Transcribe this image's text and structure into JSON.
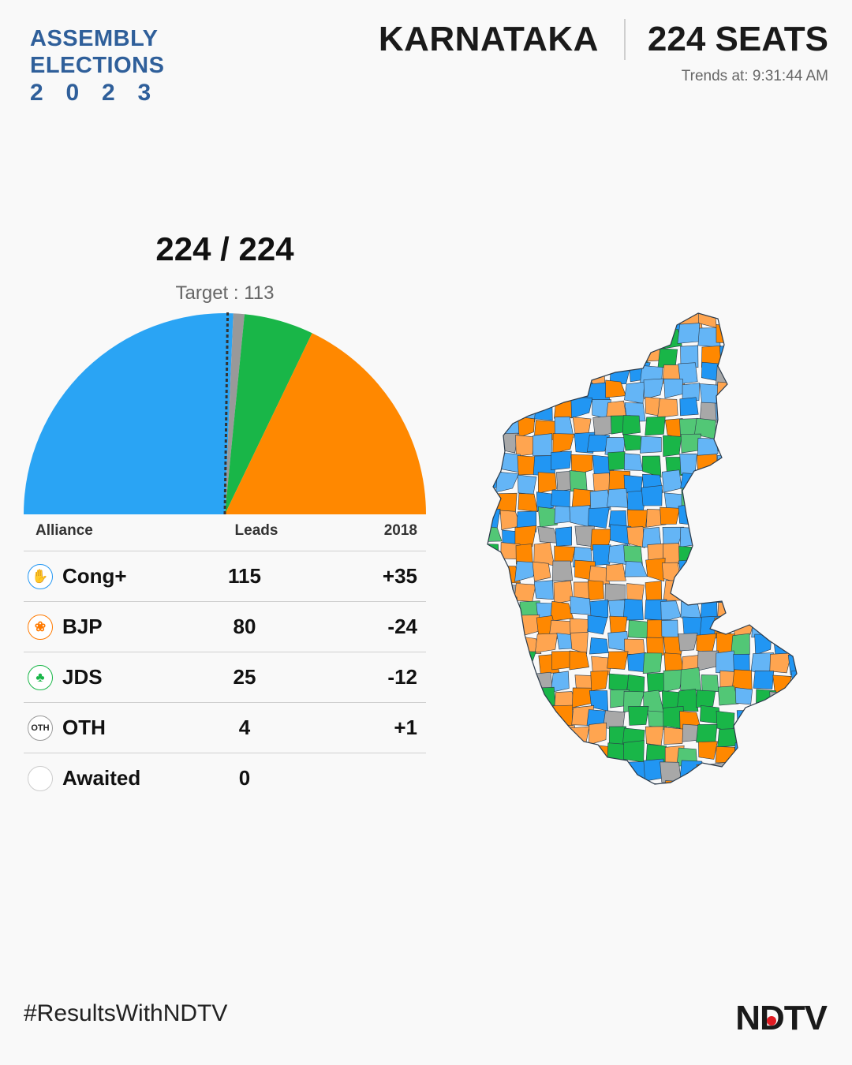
{
  "logo": {
    "line1": "ASSEMBLY",
    "line2": "ELECTIONS",
    "year_digits": [
      "2",
      "0",
      "2",
      "3"
    ]
  },
  "header": {
    "state": "KARNATAKA",
    "seats": "224 SEATS",
    "trends_label": "Trends at:",
    "trends_time": "9:31:44 AM"
  },
  "summary": {
    "counted": "224",
    "separator": "/",
    "total": "224",
    "target_label": "Target : 113"
  },
  "table": {
    "headers": {
      "alliance": "Alliance",
      "leads": "Leads",
      "change": "2018"
    },
    "rows": [
      {
        "party": "Cong+",
        "icon": "hand-icon",
        "icon_text": "✋",
        "leads": "115",
        "change": "+35"
      },
      {
        "party": "BJP",
        "icon": "lotus-icon",
        "icon_text": "❀",
        "leads": "80",
        "change": "-24"
      },
      {
        "party": "JDS",
        "icon": "farmer-icon",
        "icon_text": "♣",
        "leads": "25",
        "change": "-12"
      },
      {
        "party": "OTH",
        "icon": "oth-icon",
        "icon_text": "OTH",
        "leads": "4",
        "change": "+1"
      },
      {
        "party": "Awaited",
        "icon": "empty-circle-icon",
        "icon_text": "",
        "leads": "0",
        "change": ""
      }
    ]
  },
  "chart_data": {
    "type": "pie",
    "title": "",
    "style": "semicircle",
    "total": 224,
    "target": 113,
    "slices": [
      {
        "name": "Cong+",
        "value": 115,
        "color": "#2aa4f4"
      },
      {
        "name": "OTH",
        "value": 4,
        "color": "#999999"
      },
      {
        "name": "JDS",
        "value": 25,
        "color": "#19b648"
      },
      {
        "name": "BJP",
        "value": 80,
        "color": "#ff8800"
      },
      {
        "name": "Awaited",
        "value": 0,
        "color": "#dddddd"
      }
    ]
  },
  "map": {
    "name": "karnataka-constituency-map",
    "colors": [
      "#2196f3",
      "#64b5f6",
      "#ff8800",
      "#ffa550",
      "#19b648",
      "#52c776",
      "#a8a8a8"
    ]
  },
  "footer": {
    "hashtag": "#ResultsWithNDTV",
    "brand": "NDTV",
    "brand_dot_color": "#e01b22"
  }
}
